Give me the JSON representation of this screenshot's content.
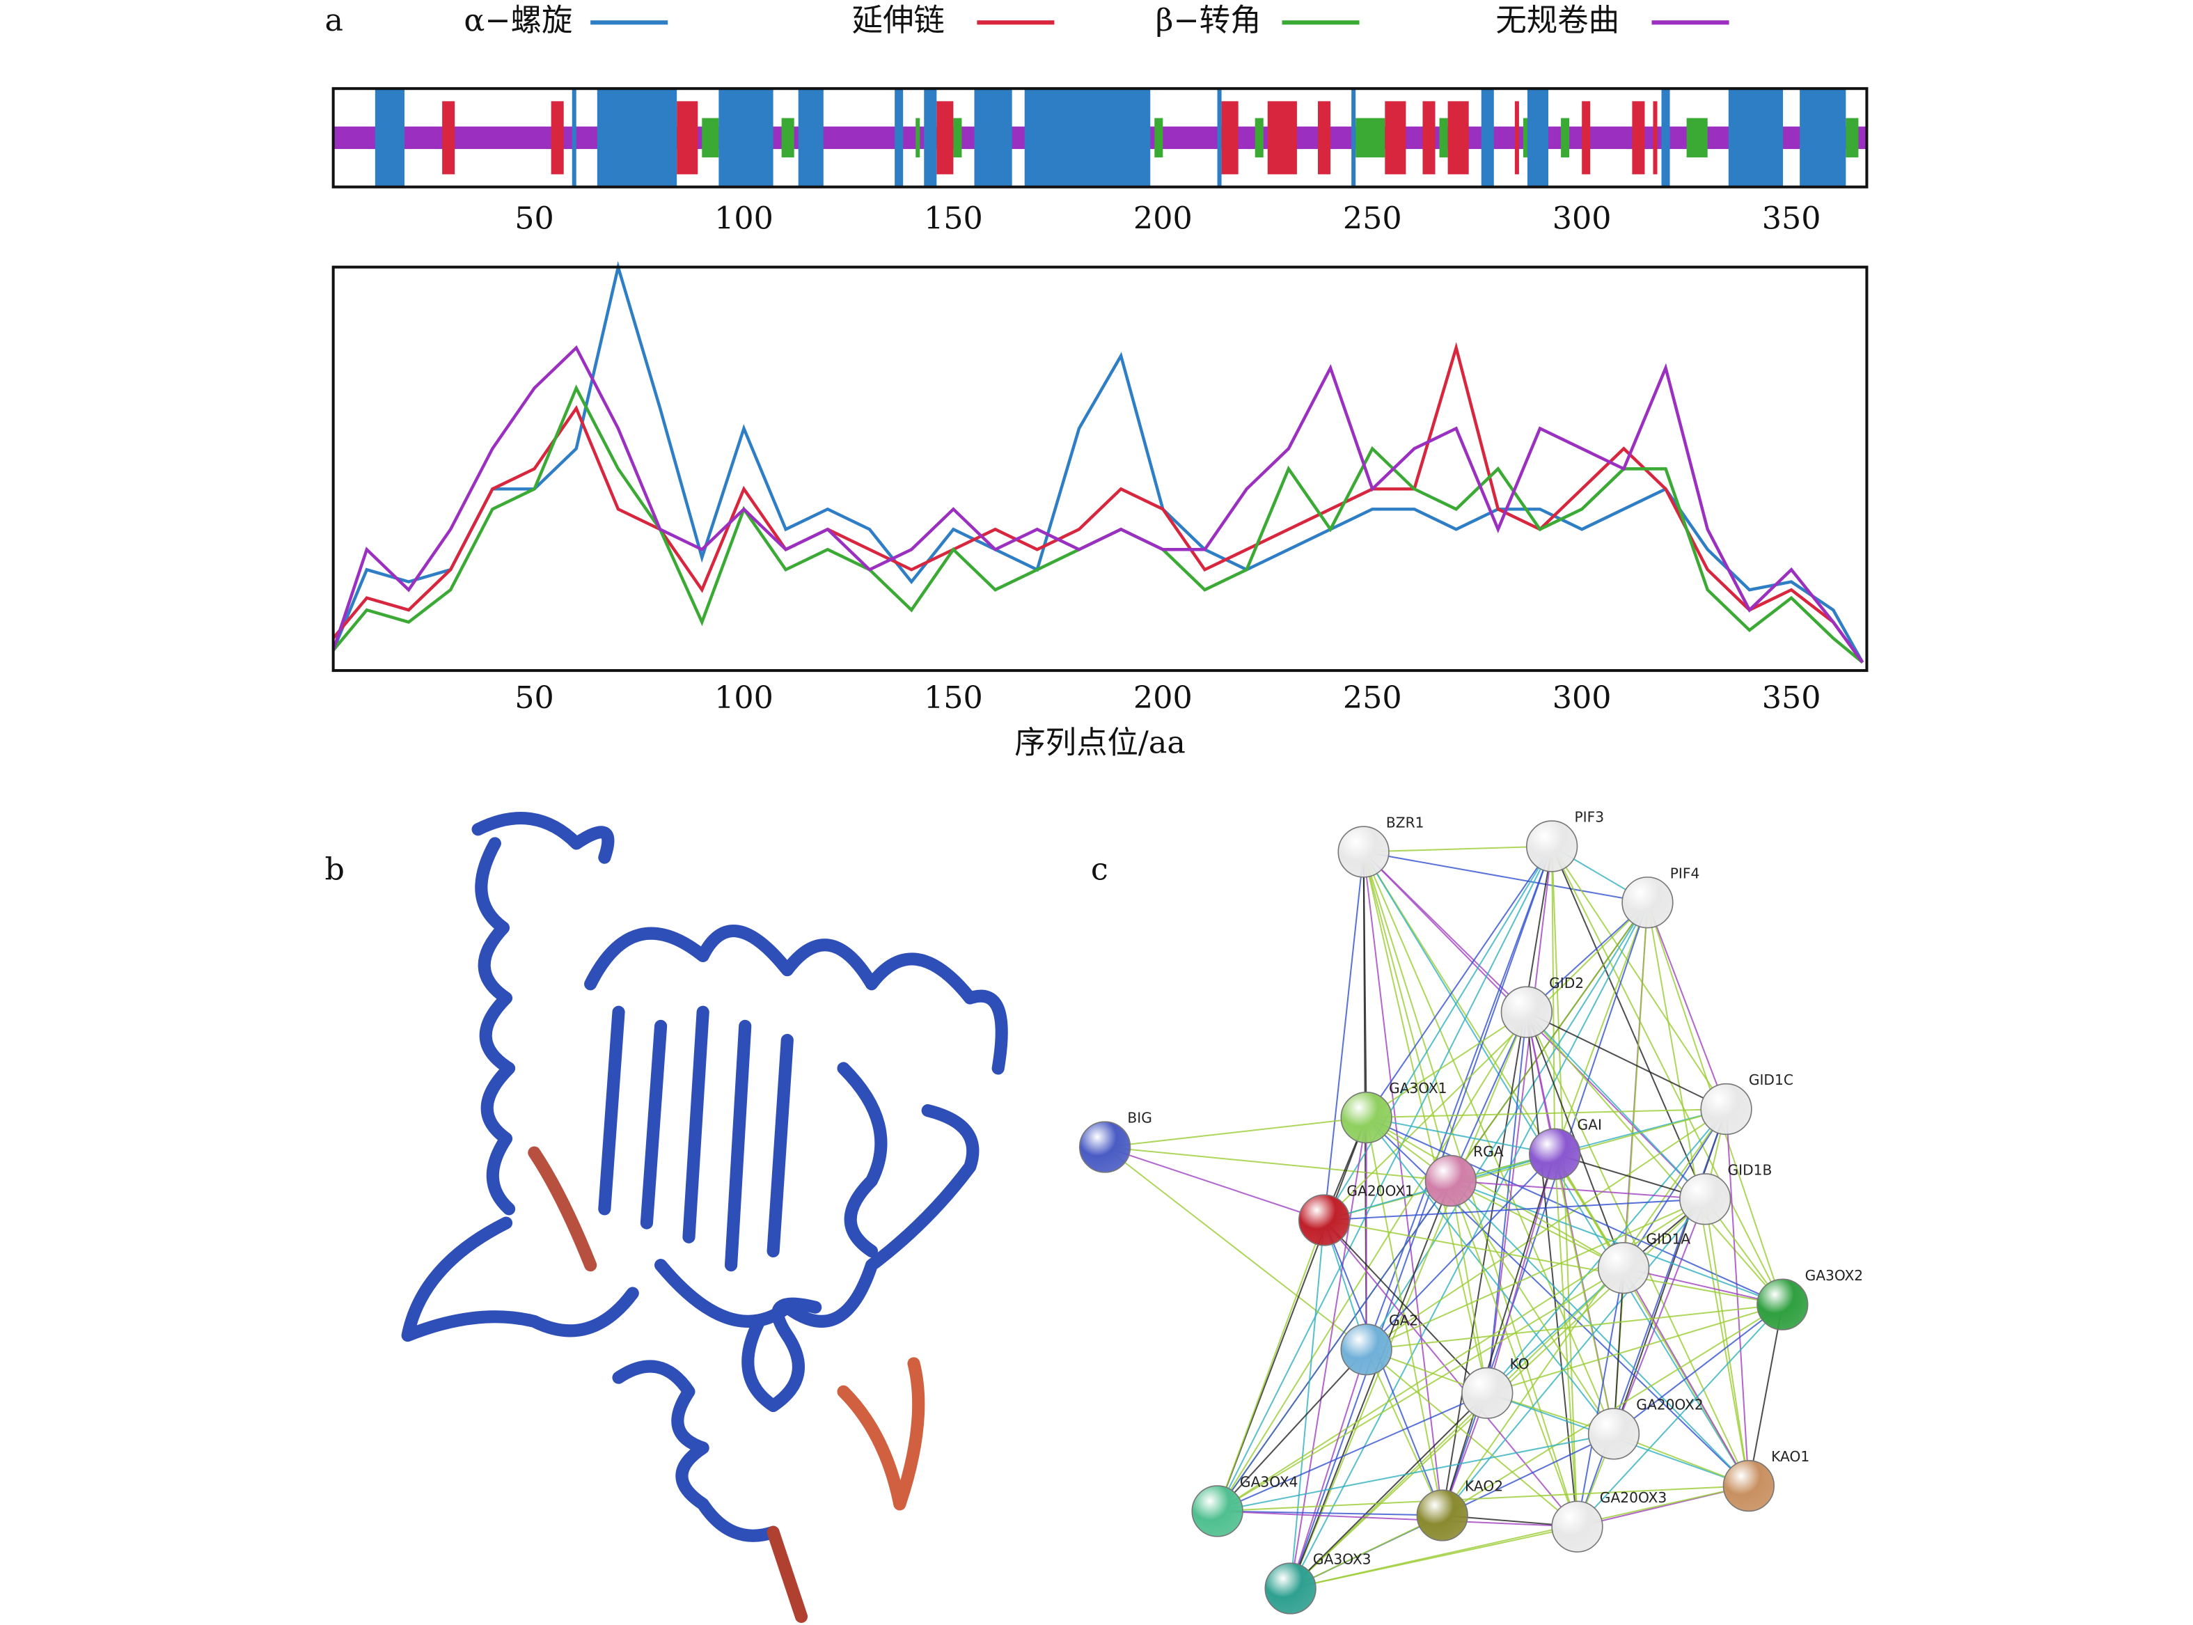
{
  "panel_labels": {
    "a": "a",
    "b": "b",
    "c": "c"
  },
  "chart_data": [
    {
      "type": "track",
      "xlim": [
        2,
        368
      ],
      "xticks": [
        50,
        100,
        150,
        200,
        250,
        300,
        350
      ],
      "series": [
        {
          "name": "α−螺旋",
          "color": "#2e7ec6",
          "segments": [
            [
              12,
              19
            ],
            [
              59,
              60
            ],
            [
              65,
              84
            ],
            [
              94,
              107
            ],
            [
              113,
              119
            ],
            [
              136,
              138
            ],
            [
              143,
              146
            ],
            [
              155,
              164
            ],
            [
              167,
              197
            ],
            [
              213,
              214
            ],
            [
              245,
              246
            ],
            [
              276,
              279
            ],
            [
              287,
              292
            ],
            [
              319,
              321
            ],
            [
              335,
              348
            ],
            [
              352,
              363
            ]
          ]
        },
        {
          "name": "延伸链",
          "color": "#d7263d",
          "segments": [
            [
              28,
              31
            ],
            [
              54,
              57
            ],
            [
              84,
              89
            ],
            [
              98,
              105
            ],
            [
              146,
              150
            ],
            [
              214,
              218
            ],
            [
              225,
              232
            ],
            [
              237,
              240
            ],
            [
              253,
              258
            ],
            [
              262,
              265
            ],
            [
              268,
              273
            ],
            [
              284,
              285
            ],
            [
              300,
              302
            ],
            [
              312,
              315
            ],
            [
              317,
              318
            ]
          ]
        },
        {
          "name": "β−转角",
          "color": "#3aaa35",
          "segments": [
            [
              80,
              83
            ],
            [
              90,
              94
            ],
            [
              109,
              112
            ],
            [
              141,
              142
            ],
            [
              150,
              152
            ],
            [
              198,
              200
            ],
            [
              222,
              224
            ],
            [
              246,
              253
            ],
            [
              266,
              268
            ],
            [
              286,
              288
            ],
            [
              295,
              297
            ],
            [
              325,
              330
            ],
            [
              363,
              366
            ]
          ]
        },
        {
          "name": "无规卷曲",
          "color": "#9b30c0",
          "segments": [
            [
              2,
              368
            ]
          ]
        }
      ]
    },
    {
      "type": "line",
      "x_label": "序列点位/aa",
      "xlim": [
        2,
        368
      ],
      "xticks": [
        50,
        100,
        150,
        200,
        250,
        300,
        350
      ],
      "ylim": [
        0,
        1
      ],
      "x": [
        2,
        10,
        20,
        30,
        40,
        50,
        60,
        70,
        80,
        90,
        100,
        110,
        120,
        130,
        140,
        150,
        160,
        170,
        180,
        190,
        200,
        210,
        220,
        230,
        240,
        250,
        260,
        270,
        280,
        290,
        300,
        310,
        320,
        330,
        340,
        350,
        360,
        367
      ],
      "series": [
        {
          "color": "#2e7ec6",
          "values": [
            0.05,
            0.25,
            0.22,
            0.25,
            0.45,
            0.45,
            0.55,
            1.0,
            0.65,
            0.28,
            0.6,
            0.35,
            0.4,
            0.35,
            0.22,
            0.35,
            0.3,
            0.25,
            0.6,
            0.78,
            0.4,
            0.3,
            0.25,
            0.3,
            0.35,
            0.4,
            0.4,
            0.35,
            0.4,
            0.4,
            0.35,
            0.4,
            0.45,
            0.3,
            0.2,
            0.22,
            0.15,
            0.02
          ]
        },
        {
          "color": "#d7263d",
          "values": [
            0.08,
            0.18,
            0.15,
            0.25,
            0.45,
            0.5,
            0.65,
            0.4,
            0.35,
            0.2,
            0.45,
            0.3,
            0.35,
            0.3,
            0.25,
            0.3,
            0.35,
            0.3,
            0.35,
            0.45,
            0.4,
            0.25,
            0.3,
            0.35,
            0.4,
            0.45,
            0.45,
            0.8,
            0.4,
            0.35,
            0.45,
            0.55,
            0.45,
            0.25,
            0.15,
            0.2,
            0.12,
            0.02
          ]
        },
        {
          "color": "#3aaa35",
          "values": [
            0.05,
            0.15,
            0.12,
            0.2,
            0.4,
            0.45,
            0.7,
            0.5,
            0.35,
            0.12,
            0.4,
            0.25,
            0.3,
            0.25,
            0.15,
            0.3,
            0.2,
            0.25,
            0.3,
            0.35,
            0.3,
            0.2,
            0.25,
            0.5,
            0.35,
            0.55,
            0.45,
            0.4,
            0.5,
            0.35,
            0.4,
            0.5,
            0.5,
            0.2,
            0.1,
            0.18,
            0.08,
            0.02
          ]
        },
        {
          "color": "#9b30c0",
          "values": [
            0.05,
            0.3,
            0.2,
            0.35,
            0.55,
            0.7,
            0.8,
            0.6,
            0.35,
            0.3,
            0.4,
            0.3,
            0.35,
            0.25,
            0.3,
            0.4,
            0.3,
            0.35,
            0.3,
            0.35,
            0.3,
            0.3,
            0.45,
            0.55,
            0.75,
            0.45,
            0.55,
            0.6,
            0.35,
            0.6,
            0.55,
            0.5,
            0.75,
            0.35,
            0.15,
            0.25,
            0.12,
            0.02
          ]
        }
      ]
    }
  ],
  "network": {
    "nodes": [
      {
        "label": "BZR1",
        "color": "#e8e8e8"
      },
      {
        "label": "PIF3",
        "color": "#e8e8e8"
      },
      {
        "label": "PIF4",
        "color": "#e8e8e8"
      },
      {
        "label": "GID2",
        "color": "#e8e8e8"
      },
      {
        "label": "GID1C",
        "color": "#e8e8e8"
      },
      {
        "label": "BIG",
        "color": "#4a5cc4"
      },
      {
        "label": "GA3OX1",
        "color": "#8fcf5f"
      },
      {
        "label": "RGA",
        "color": "#d07fa8"
      },
      {
        "label": "GAI",
        "color": "#8a58d0"
      },
      {
        "label": "GA20OX1",
        "color": "#c0202a"
      },
      {
        "label": "GID1B",
        "color": "#e8e8e8"
      },
      {
        "label": "GID1A",
        "color": "#e8e8e8"
      },
      {
        "label": "GA3OX2",
        "color": "#30a040"
      },
      {
        "label": "GA2",
        "color": "#70b0d8"
      },
      {
        "label": "KO",
        "color": "#e8e8e8"
      },
      {
        "label": "GA20OX2",
        "color": "#e8e8e8"
      },
      {
        "label": "GA3OX4",
        "color": "#50c090"
      },
      {
        "label": "KAO2",
        "color": "#8a8a30"
      },
      {
        "label": "GA20OX3",
        "color": "#e8e8e8"
      },
      {
        "label": "KAO1",
        "color": "#c89060"
      },
      {
        "label": "GA3OX3",
        "color": "#2fa090"
      }
    ]
  }
}
